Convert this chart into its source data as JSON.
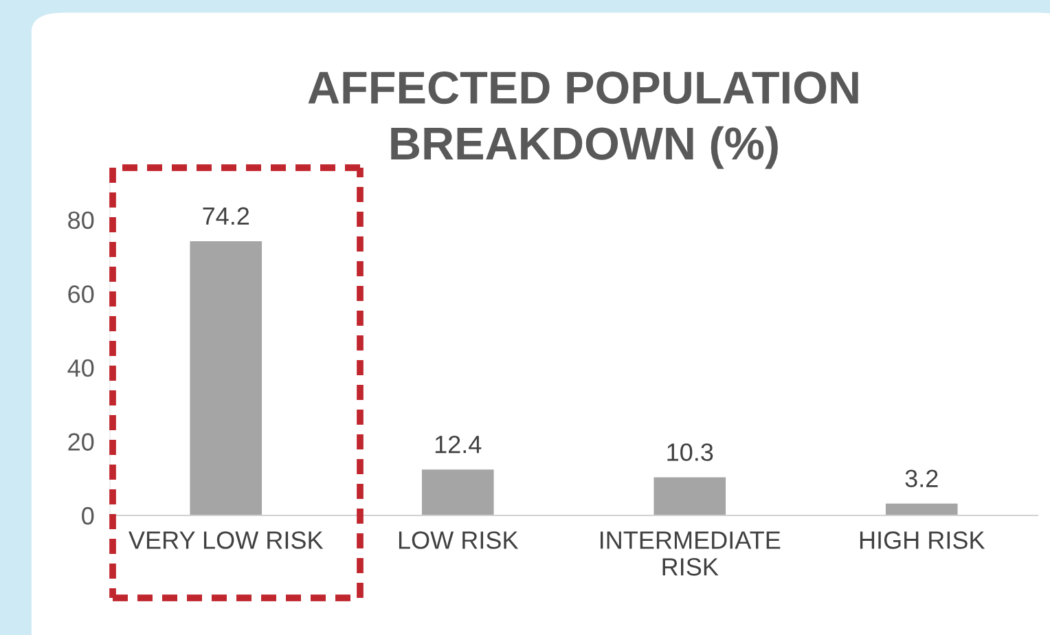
{
  "chart_data": {
    "type": "bar",
    "title": "AFFECTED POPULATION\nBREAKDOWN (%)",
    "categories": [
      "VERY LOW RISK",
      "LOW RISK",
      "INTERMEDIATE\nRISK",
      "HIGH RISK"
    ],
    "values": [
      74.2,
      12.4,
      10.3,
      3.2
    ],
    "color": "#a5a5a5",
    "ylim": [
      0,
      90
    ],
    "yticks": [
      0,
      20,
      40,
      60,
      80
    ],
    "data_labels": true,
    "grid": false,
    "legend": false
  }
}
